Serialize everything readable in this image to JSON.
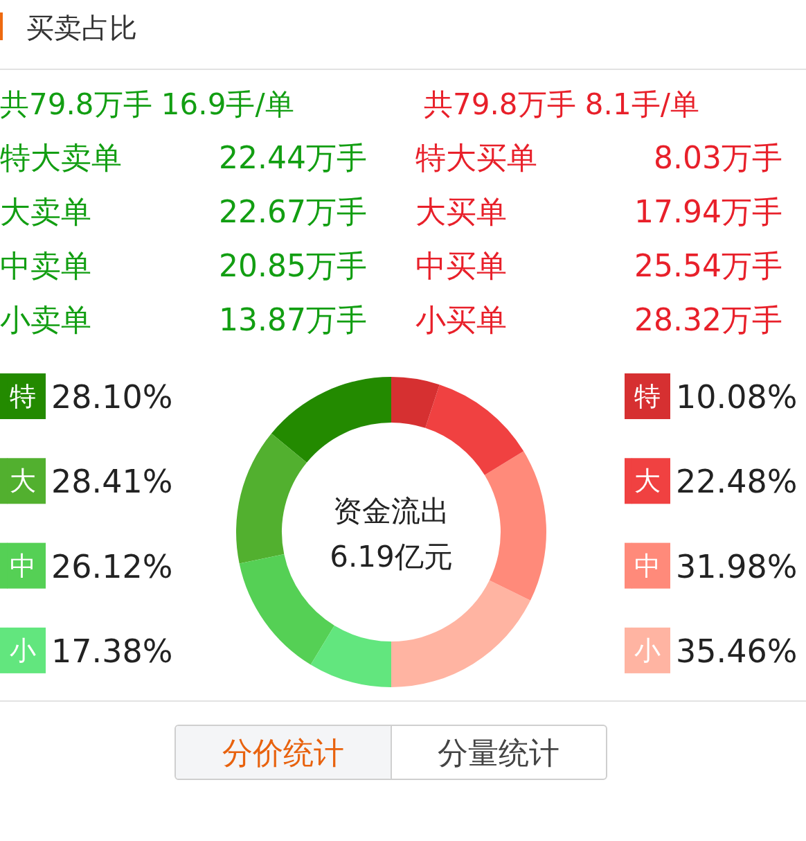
{
  "chart_data": {
    "type": "donut",
    "title": "买卖占比",
    "categories": [
      "特",
      "大",
      "中",
      "小",
      "小",
      "中",
      "大",
      "特"
    ],
    "values": [
      28.1,
      28.41,
      26.12,
      17.38,
      35.46,
      31.98,
      22.48,
      10.08
    ],
    "value_labels": [
      "28.10%",
      "28.41%",
      "26.12%",
      "17.38%",
      "35.46%",
      "31.98%",
      "22.48%",
      "10.08%"
    ],
    "legend": "left",
    "colors": [
      "#238a00",
      "#52b02f",
      "#55d055",
      "#62e67e",
      "#ffb4a2",
      "#ff8a7a",
      "#f04141",
      "#d63031"
    ],
    "annotations": [
      "共79.8万手 16.9手/单",
      "共79.8万手 8.1手/单",
      "特大卖单",
      "22.44万手",
      "特大买单",
      "8.03万手",
      "大卖单",
      "22.67万手",
      "大买单",
      "17.94万手",
      "中卖单",
      "20.85万手",
      "中买单",
      "25.54万手",
      "小卖单",
      "13.87万手",
      "小买单",
      "28.32万手",
      "资金流出",
      "6.19亿元",
      "分价统计",
      "分量统计"
    ]
  }
}
